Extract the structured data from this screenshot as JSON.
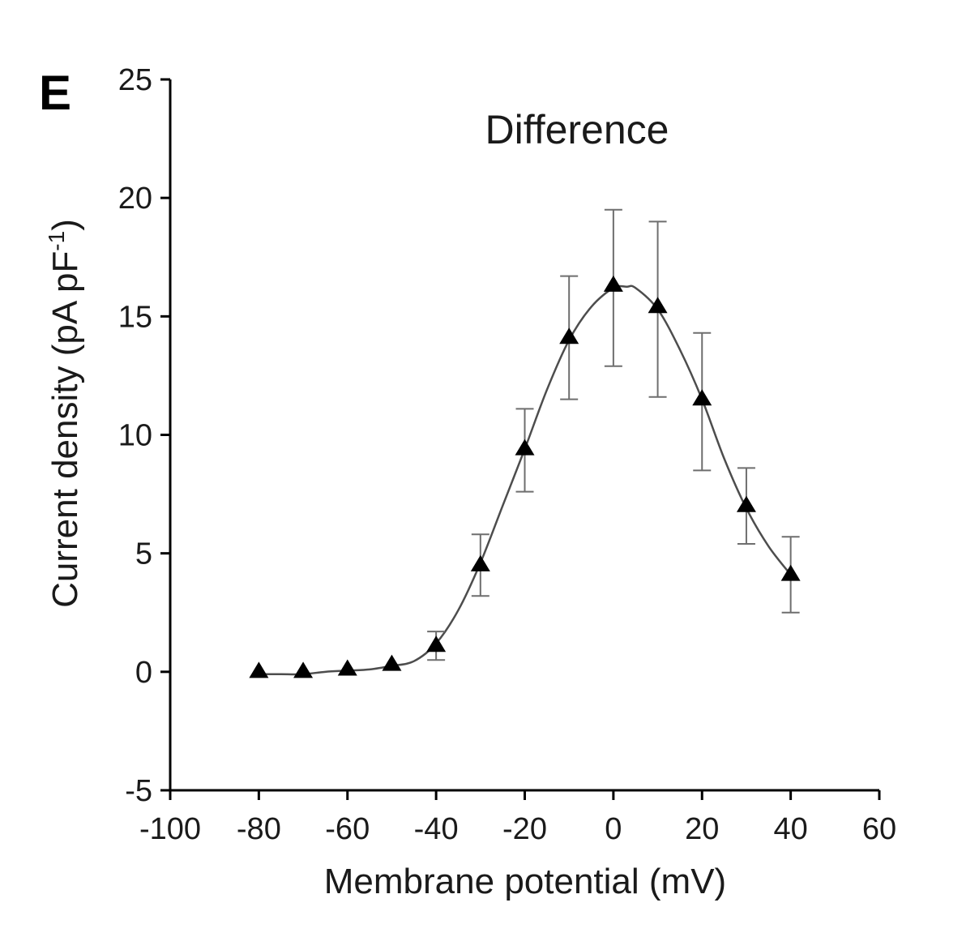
{
  "chart_data": {
    "type": "line",
    "panel_label": "E",
    "title": "Difference",
    "xlabel": "Membrane potential (mV)",
    "ylabel_main": "Current density (pA pF",
    "ylabel_sup": "-1",
    "ylabel_end": ")",
    "xlim": [
      -100,
      60
    ],
    "ylim": [
      -5,
      25
    ],
    "x_ticks": [
      -100,
      -80,
      -60,
      -40,
      -20,
      0,
      20,
      40,
      60
    ],
    "y_ticks": [
      -5,
      0,
      5,
      10,
      15,
      20,
      25
    ],
    "grid": false,
    "legend": "none",
    "colors": {
      "line": "#4d4d4d",
      "marker": "#000000",
      "error_bar": "#6e6e6e"
    },
    "series": [
      {
        "marker": "triangle",
        "x": [
          -80,
          -70,
          -60,
          -50,
          -40,
          -30,
          -20,
          -10,
          0,
          10,
          20,
          30,
          40
        ],
        "y": [
          0.0,
          0.0,
          0.1,
          0.3,
          1.1,
          4.5,
          9.4,
          14.1,
          16.3,
          15.4,
          11.5,
          7.0,
          4.1
        ],
        "error_upper": [
          0.0,
          0.0,
          0.1,
          0.3,
          1.7,
          5.8,
          11.1,
          16.7,
          19.5,
          19.0,
          14.3,
          8.6,
          5.7
        ],
        "error_lower": [
          0.0,
          0.0,
          0.1,
          0.3,
          0.5,
          3.2,
          7.6,
          11.5,
          12.9,
          11.6,
          8.5,
          5.4,
          2.5
        ]
      }
    ],
    "fit_curve": {
      "x": [
        -80,
        -75,
        -70,
        -65,
        -60,
        -55,
        -50,
        -45,
        -40,
        -35,
        -30,
        -25,
        -20,
        -15,
        -10,
        -5,
        0,
        3,
        5,
        10,
        15,
        20,
        25,
        30,
        35,
        40
      ],
      "y": [
        -0.1,
        -0.1,
        -0.1,
        0.0,
        0.05,
        0.1,
        0.25,
        0.45,
        1.2,
        2.6,
        4.6,
        7.0,
        9.4,
        11.9,
        14.0,
        15.4,
        16.2,
        16.25,
        16.2,
        15.3,
        13.6,
        11.5,
        9.0,
        6.9,
        5.3,
        4.1
      ]
    }
  }
}
